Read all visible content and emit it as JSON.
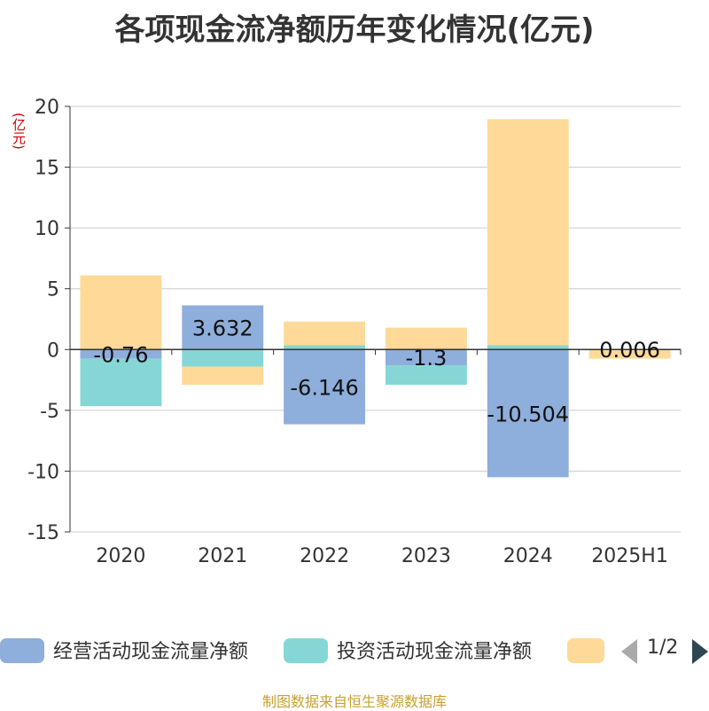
{
  "chart_data": {
    "type": "bar",
    "stacked": true,
    "title": "各项现金流净额历年变化情况(亿元)",
    "unit_label": "(亿元)",
    "categories": [
      "2020",
      "2021",
      "2022",
      "2023",
      "2024",
      "2025H1"
    ],
    "ylim": [
      -15,
      20
    ],
    "yticks": [
      -15,
      -10,
      -5,
      0,
      5,
      10,
      15,
      20
    ],
    "grid": true,
    "series": [
      {
        "name": "经营活动现金流量净额",
        "color": "#8eaedb",
        "values": [
          -0.76,
          3.632,
          -6.146,
          -1.3,
          -10.504,
          0.006
        ],
        "show_labels": true
      },
      {
        "name": "投资活动现金流量净额",
        "color": "#86d6d6",
        "values": [
          -3.9,
          -1.4,
          0.35,
          -1.6,
          0.35,
          0
        ]
      },
      {
        "name": "",
        "color": "#fed998",
        "values": [
          6.1,
          -1.5,
          1.95,
          1.8,
          18.6,
          -0.75
        ]
      }
    ]
  },
  "legend": {
    "items": [
      {
        "label": "经营活动现金流量净额",
        "color": "#8eaedb"
      },
      {
        "label": "投资活动现金流量净额",
        "color": "#86d6d6"
      },
      {
        "label": "",
        "color": "#fed998"
      }
    ],
    "pager": "1/2"
  },
  "source": "制图数据来自恒生聚源数据库"
}
